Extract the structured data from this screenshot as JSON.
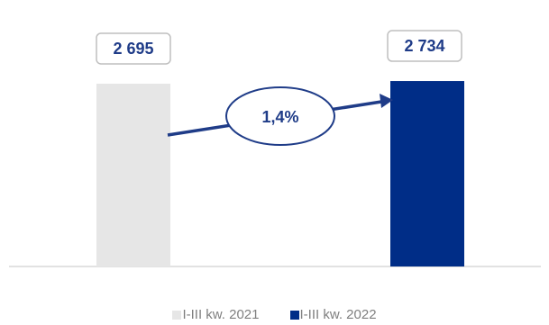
{
  "chart_data": {
    "type": "bar",
    "categories": [
      "I-III kw. 2021",
      "I-III kw. 2022"
    ],
    "series": [
      {
        "name": "I-III kw. 2021",
        "values": [
          2695,
          null
        ],
        "color": "#e6e6e6"
      },
      {
        "name": "I-III kw. 2022",
        "values": [
          null,
          2734
        ],
        "color": "#002d87"
      }
    ],
    "values": [
      2695,
      2734
    ],
    "value_labels": [
      "2 695",
      "2 734"
    ],
    "change_label": "1,4%",
    "ylim": [
      0,
      3000
    ],
    "grid": false,
    "legend_position": "bottom",
    "accent_color": "#1f3c88"
  }
}
